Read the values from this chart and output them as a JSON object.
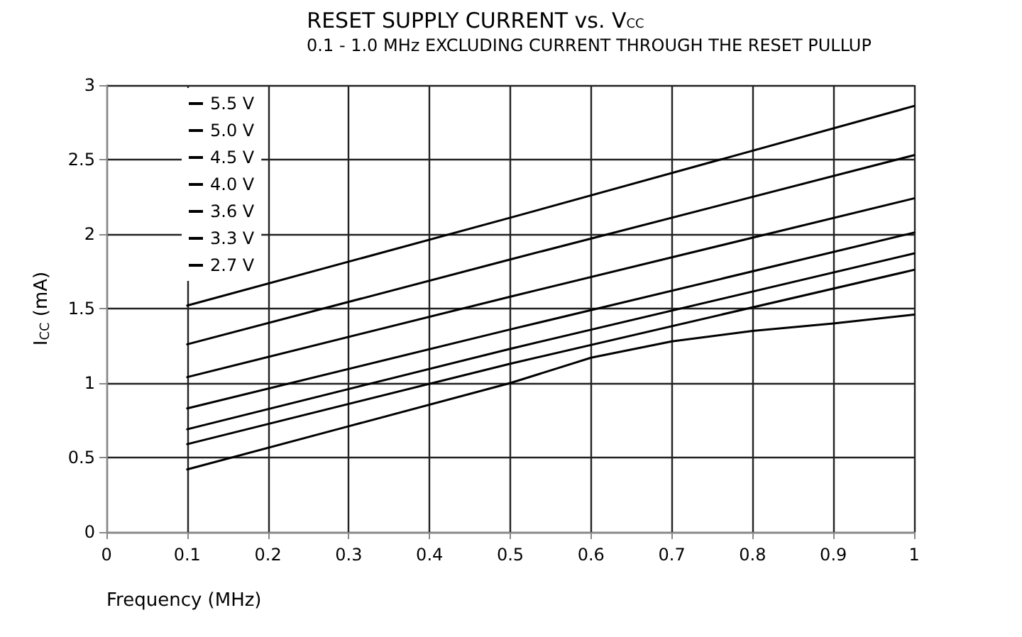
{
  "chart_data": {
    "type": "line",
    "title": "RESET SUPPLY CURRENT vs. V$_{CC}$",
    "subtitle": "0.1 - 1.0 MHz EXCLUDING CURRENT THROUGH THE RESET PULLUP",
    "xlabel": "Frequency (MHz)",
    "ylabel": "I$_{CC}$ (mA)",
    "x": [
      0.1,
      0.5,
      1.0
    ],
    "series": [
      {
        "name": "5.5 V",
        "color": "#000000",
        "values": [
          1.52,
          2.11,
          2.86
        ]
      },
      {
        "name": "5.0 V",
        "color": "#000000",
        "values": [
          1.26,
          1.83,
          2.53
        ]
      },
      {
        "name": "4.5 V",
        "color": "#000000",
        "values": [
          1.04,
          1.58,
          2.24
        ]
      },
      {
        "name": "4.0 V",
        "color": "#000000",
        "values": [
          0.83,
          1.36,
          2.01
        ]
      },
      {
        "name": "3.6 V",
        "color": "#000000",
        "values": [
          0.69,
          1.23,
          1.87
        ]
      },
      {
        "name": "3.3 V",
        "color": "#000000",
        "values": [
          0.59,
          1.13,
          1.76
        ]
      },
      {
        "name": "2.7 V",
        "color": "#000000",
        "x": [
          0.1,
          0.3,
          0.5,
          0.6,
          0.7,
          0.8,
          0.9,
          1.0
        ],
        "values": [
          0.42,
          0.71,
          1.0,
          1.17,
          1.28,
          1.35,
          1.4,
          1.46
        ]
      }
    ],
    "xlim": [
      0,
      1
    ],
    "xticks": [
      0,
      0.1,
      0.2,
      0.3,
      0.4,
      0.5,
      0.6,
      0.7,
      0.8,
      0.9,
      1
    ],
    "ylim": [
      0,
      3
    ],
    "yticks": [
      0,
      0.5,
      1,
      1.5,
      2,
      2.5,
      3
    ],
    "grid": true,
    "legend": "top left",
    "marker": "none",
    "line_style": "solid"
  }
}
